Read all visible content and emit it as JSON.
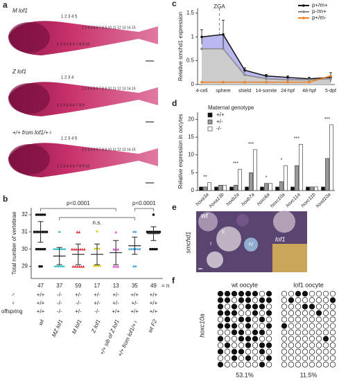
{
  "panels": {
    "a": {
      "label": "a",
      "fish": [
        {
          "name": "M lof1",
          "vertebrae": [
            "1 2 3 4 5",
            "1 2 3 4 5 6 7 8 9 10 11 12 13 14 15",
            "1 2 3 4 5 6 7 8 9 10"
          ]
        },
        {
          "name": "Z lof1",
          "vertebrae": [
            "1 2 3 4",
            "1 2 3 4 5 6 7 8 9 10 11 12 13 14 15",
            "1 2 3 4 5 6 7 8 9"
          ]
        },
        {
          "name": "+/+ from lof1/+♀",
          "vertebrae": [
            "1 2 3 4 5",
            "1 2 3 4 5 6 7 8 9 10 11 12 13 14 15",
            "1 2 3 4 5 6 7 8 9 10"
          ]
        }
      ]
    },
    "e": {
      "label": "e",
      "genotype": "wt",
      "gene": "smchd1",
      "stages": [
        "I",
        "II",
        "IV"
      ],
      "inset": "lof1"
    },
    "f": {
      "label": "f",
      "gene": "hoxc10a",
      "groups": [
        {
          "name": "wt oocyte",
          "percent": "53.1%",
          "rows": [
            "11111101",
            "11011011",
            "10101110",
            "11100101",
            "01011010",
            "11101001",
            "00110110",
            "10011100",
            "01001011",
            "10110010",
            "00101001",
            "10000010"
          ]
        },
        {
          "name": "lof1 oocyte",
          "percent": "11.5%",
          "rows": [
            "00110000",
            "01000001",
            "00011000",
            "00000100",
            "00000000",
            "10000000",
            "00000000",
            "00000010",
            "00000000",
            "00000000",
            "00000000",
            "00000000"
          ]
        }
      ]
    }
  },
  "chart_data": [
    {
      "type": "strip",
      "panel": "b",
      "ylabel": "Total number of vertebrae",
      "ylim": [
        28.3,
        32.4
      ],
      "yticks": [
        29,
        30,
        31,
        32
      ],
      "categories": [
        "wt",
        "MZ lof1",
        "M lof1",
        "Z lof1",
        "+/+ sib of Z lof1",
        "+/+ from lof1/+♀",
        "wt F2"
      ],
      "colors": [
        "#111111",
        "#2ec4c4",
        "#e02030",
        "#d8c800",
        "#e040d0",
        "#3aa0e0",
        "#111111"
      ],
      "markers": [
        "circle",
        "square",
        "triangle",
        "triangle-down",
        "triangle",
        "diamond",
        "circle"
      ],
      "points": [
        [
          29,
          29,
          30,
          30,
          30,
          30,
          30,
          31,
          31,
          31,
          31,
          31,
          31,
          31,
          32,
          32,
          32,
          32,
          32
        ],
        [
          29,
          29,
          29,
          29,
          29,
          30,
          30,
          30,
          30,
          30,
          30,
          31
        ],
        [
          29,
          29,
          29,
          29,
          29,
          29,
          30,
          30,
          30,
          30,
          30,
          30,
          30,
          31,
          31
        ],
        [
          29,
          29,
          29,
          29,
          30,
          30,
          30,
          31
        ],
        [
          29,
          29,
          29,
          30,
          30,
          30,
          31
        ],
        [
          29,
          29,
          30,
          30,
          30,
          30,
          30,
          30,
          31,
          31
        ],
        [
          30,
          30,
          30,
          30,
          31,
          31,
          31,
          31,
          31,
          31,
          31,
          32
        ]
      ],
      "means": [
        31.0,
        29.6,
        29.7,
        29.7,
        29.8,
        30.2,
        30.9
      ],
      "sds": [
        0.6,
        0.5,
        0.6,
        0.6,
        0.7,
        0.5,
        0.4
      ],
      "n": [
        47,
        37,
        59,
        17,
        13,
        35,
        49
      ],
      "n_label": "= n",
      "genotype_rows": [
        "♂",
        "♀",
        "offspring"
      ],
      "genotypes": [
        [
          "+/+",
          "-/-",
          "+/-",
          "+/-",
          "+/-",
          "+/+",
          "+/+"
        ],
        [
          "+/+",
          "-/-",
          "-/-",
          "+/-",
          "+/-",
          "+/-",
          "+/+"
        ],
        [
          "+/+",
          "-/-",
          "+/-",
          "-/-",
          "+/+",
          "+/+",
          "+/+"
        ]
      ],
      "annotations": [
        "p<0.0001",
        "n.s.",
        "p<0.0001"
      ]
    },
    {
      "type": "line",
      "panel": "c",
      "ylabel": "Relative smchd1 expression",
      "ylim": [
        0,
        1.6
      ],
      "yticks": [
        0,
        0.5,
        1,
        1.5
      ],
      "categories": [
        "4-cell",
        "sphere",
        "shield",
        "14-somite",
        "24-hpf",
        "48-hpf",
        "5-dpf"
      ],
      "annotation": "ZGA",
      "series": [
        {
          "name": "p+/m+",
          "color": "#111111",
          "fill": "#b8b8ee",
          "values": [
            1.0,
            1.05,
            0.3,
            0.18,
            0.15,
            0.12,
            0.15
          ],
          "errors": [
            0.15,
            0.3,
            0.05,
            0.03,
            0.03,
            0.03,
            0.1
          ]
        },
        {
          "name": "p-/m+",
          "color": "#888888",
          "fill": "#cccccc",
          "values": [
            0.75,
            0.75,
            0.2,
            0.12,
            0.1,
            0.1,
            0.12
          ]
        },
        {
          "name": "p+/m-",
          "color": "#f08020",
          "values": [
            0.05,
            0.05,
            0.05,
            0.05,
            0.05,
            0.05,
            0.18
          ]
        }
      ]
    },
    {
      "type": "bar",
      "panel": "d",
      "ylabel": "Relative expression in oocytes",
      "ylim": [
        0,
        22
      ],
      "yticks": [
        0,
        5,
        10,
        15,
        20
      ],
      "legend_title": "Maternal genotype",
      "categories": [
        "hoxa3a",
        "hoxa13b",
        "hoxb2a",
        "hoxb7a",
        "hoxc6a",
        "hoxc10a",
        "hoxc11a",
        "hoxc11b",
        "hoxd10a"
      ],
      "series": [
        {
          "name": "+/+",
          "color": "#111111",
          "values": [
            1,
            1,
            1,
            1,
            1,
            1,
            1,
            1,
            1
          ]
        },
        {
          "name": "+/-",
          "color": "#999999",
          "values": [
            1,
            1.5,
            1.5,
            5,
            2,
            2.5,
            7,
            1,
            9
          ]
        },
        {
          "name": "-/-",
          "color": "#ffffff",
          "values": [
            2.2,
            1.5,
            6,
            11.5,
            2,
            7,
            13,
            1,
            18.5
          ]
        }
      ],
      "significance": [
        "**",
        null,
        "***",
        "***",
        "*",
        "*",
        "***",
        null,
        "***"
      ]
    }
  ]
}
